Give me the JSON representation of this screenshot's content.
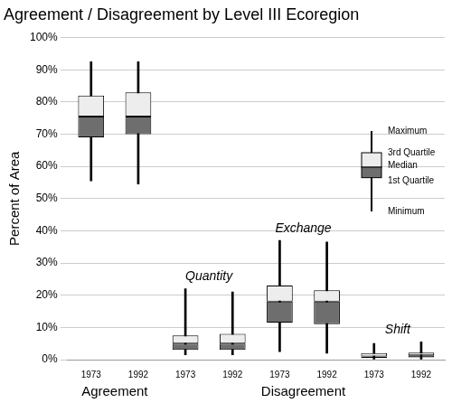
{
  "chart_data": {
    "type": "boxplot",
    "title": "Agreement / Disagreement by Level III Ecoregion",
    "y_label": "Percent of Area",
    "ylim": [
      0,
      100
    ],
    "yticks": [
      {
        "value": 0,
        "label": "0%"
      },
      {
        "value": 10,
        "label": "10%"
      },
      {
        "value": 20,
        "label": "20%"
      },
      {
        "value": 30,
        "label": "30%"
      },
      {
        "value": 40,
        "label": "40%"
      },
      {
        "value": 50,
        "label": "50%"
      },
      {
        "value": 60,
        "label": "60%"
      },
      {
        "value": 70,
        "label": "70%"
      },
      {
        "value": 80,
        "label": "80%"
      },
      {
        "value": 90,
        "label": "90%"
      },
      {
        "value": 100,
        "label": "100%"
      }
    ],
    "grid": true,
    "color": "#000000",
    "colors": [
      "#6e6e6e",
      "#ededed"
    ],
    "groups": [
      {
        "label": "Agreement",
        "boxes": [
          {
            "x": "1973",
            "min": 55.5,
            "q1": 69,
            "median": 75.5,
            "q3": 82,
            "max": 92.5
          },
          {
            "x": "1992",
            "min": 54.5,
            "q1": 70,
            "median": 75.5,
            "q3": 83,
            "max": 92.5
          }
        ]
      },
      {
        "label": "Disagreement",
        "subgroups": [
          {
            "label": "Quantity",
            "boxes": [
              {
                "x": "1973",
                "min": 1.5,
                "q1": 3,
                "median": 5,
                "q3": 7.5,
                "max": 22
              },
              {
                "x": "1992",
                "min": 1.5,
                "q1": 3,
                "median": 5,
                "q3": 8,
                "max": 21
              }
            ]
          },
          {
            "label": "Exchange",
            "boxes": [
              {
                "x": "1973",
                "min": 2.5,
                "q1": 11.5,
                "median": 18,
                "q3": 23,
                "max": 37
              },
              {
                "x": "1992",
                "min": 2,
                "q1": 11,
                "median": 18,
                "q3": 21.5,
                "max": 36.5
              }
            ]
          },
          {
            "label": "Shift",
            "boxes": [
              {
                "x": "1973",
                "min": 0,
                "q1": 0.5,
                "median": 1,
                "q3": 2,
                "max": 5
              },
              {
                "x": "1992",
                "min": 0,
                "q1": 0.7,
                "median": 1.3,
                "q3": 2.2,
                "max": 5.5
              }
            ]
          }
        ]
      }
    ],
    "legend_key": {
      "max": "Maximum",
      "q3": "3rd Quartile",
      "median": "Median",
      "q1": "1st Quartile",
      "min": "Minimum"
    }
  }
}
